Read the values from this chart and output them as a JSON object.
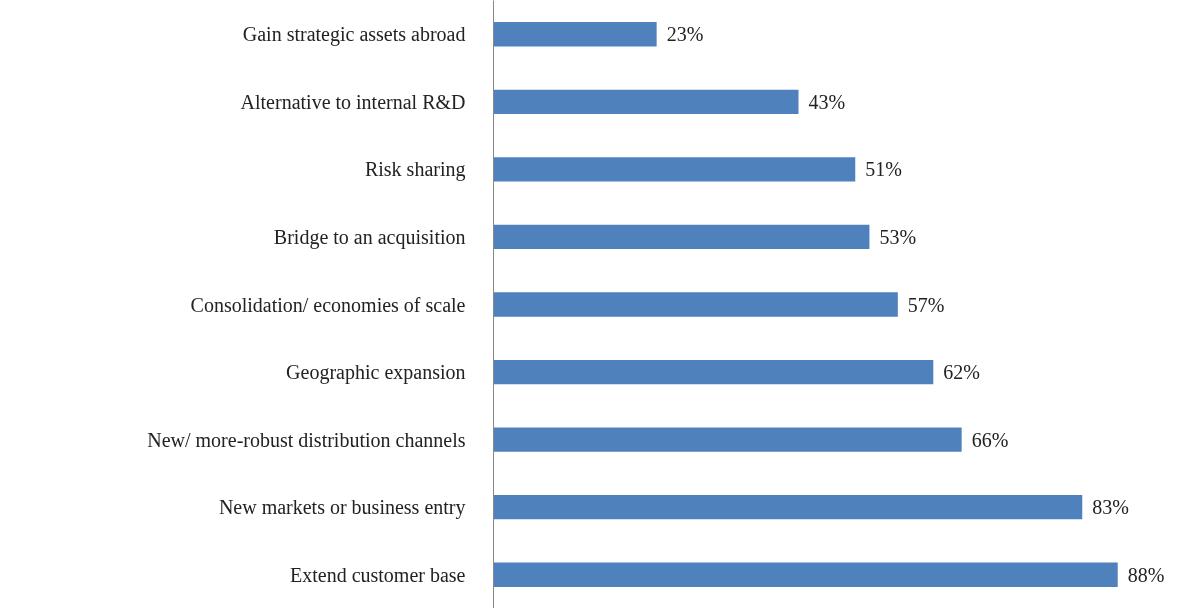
{
  "chart_data": {
    "type": "bar",
    "orientation": "horizontal",
    "categories": [
      "Gain strategic assets abroad",
      "Alternative to internal R&D",
      "Risk sharing",
      "Bridge to an acquisition",
      "Consolidation/ economies of scale",
      "Geographic expansion",
      "New/ more-robust distribution channels",
      "New markets or business entry",
      "Extend customer base"
    ],
    "values": [
      23,
      43,
      51,
      53,
      57,
      62,
      66,
      83,
      88
    ],
    "value_labels": [
      "23%",
      "43%",
      "51%",
      "53%",
      "57%",
      "62%",
      "66%",
      "83%",
      "88%"
    ],
    "color": "#4f81bd",
    "tick_labels": "y",
    "grid": false
  }
}
